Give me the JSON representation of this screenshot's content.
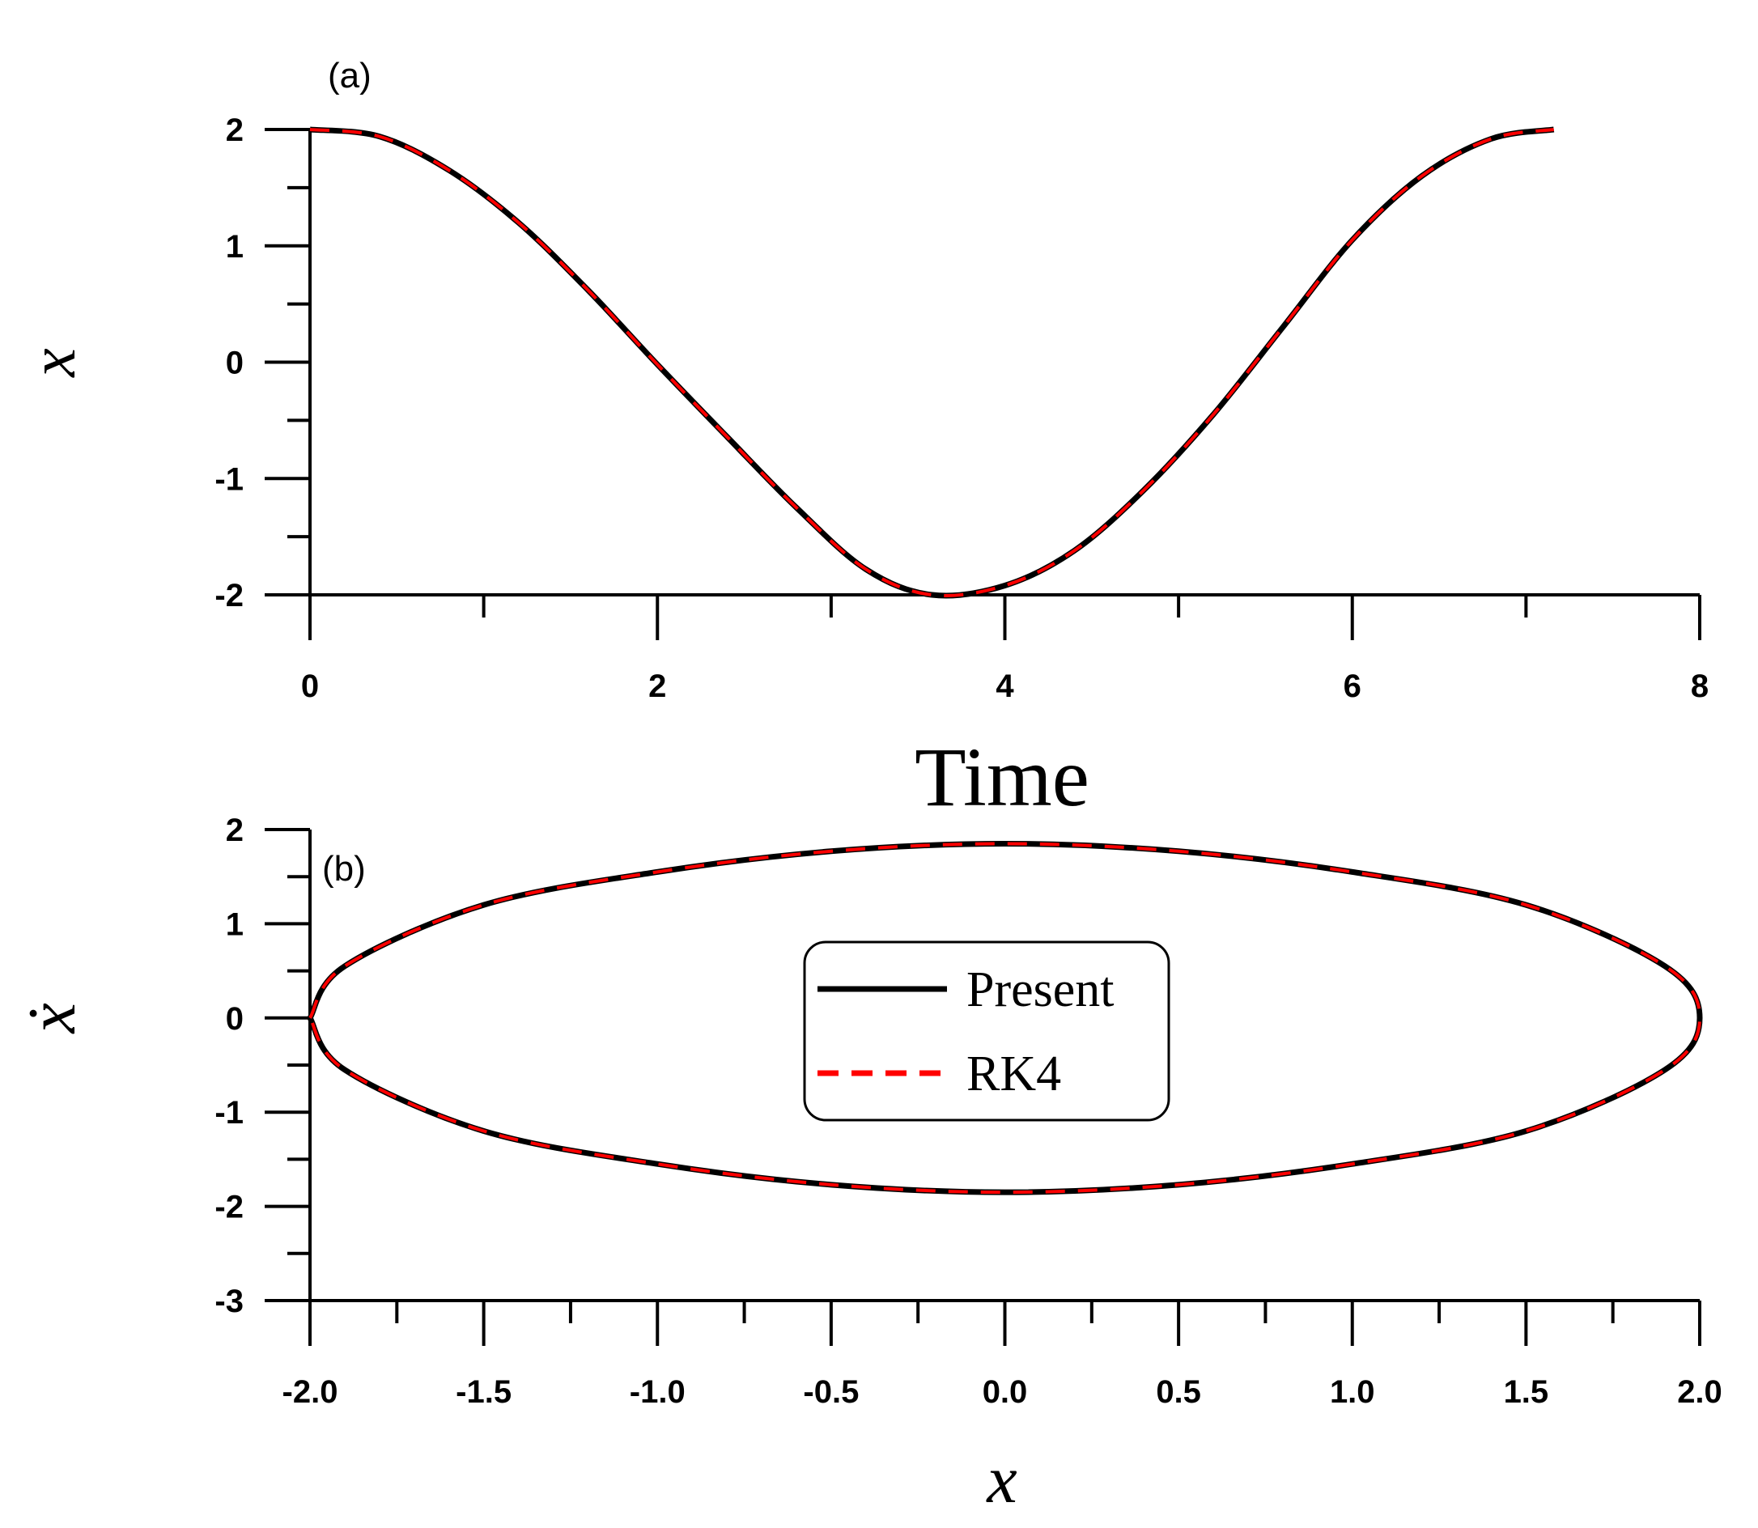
{
  "chart_data": [
    {
      "panel": "(a)",
      "type": "line",
      "xlabel": "Time",
      "ylabel": "x",
      "xlim": [
        0,
        8
      ],
      "ylim": [
        -2,
        2
      ],
      "xticks": [
        "0",
        "2",
        "4",
        "6",
        "8"
      ],
      "yticks": [
        "2",
        "1",
        "0",
        "-1",
        "-2"
      ],
      "series": [
        {
          "name": "Present",
          "color": "#000000",
          "style": "solid",
          "x": [
            0,
            0.4,
            0.8,
            1.2,
            1.6,
            2.0,
            2.4,
            2.8,
            3.2,
            3.58,
            4.0,
            4.4,
            4.8,
            5.2,
            5.6,
            6.0,
            6.4,
            6.8,
            7.16
          ],
          "y": [
            2.0,
            1.94,
            1.65,
            1.2,
            0.62,
            -0.02,
            -0.64,
            -1.25,
            -1.78,
            -2.0,
            -1.92,
            -1.62,
            -1.1,
            -0.45,
            0.3,
            1.05,
            1.6,
            1.92,
            2.0
          ]
        },
        {
          "name": "RK4",
          "color": "#ff0000",
          "style": "dashed",
          "x": [
            0,
            0.4,
            0.8,
            1.2,
            1.6,
            2.0,
            2.4,
            2.8,
            3.2,
            3.58,
            4.0,
            4.4,
            4.8,
            5.2,
            5.6,
            6.0,
            6.4,
            6.8,
            7.16
          ],
          "y": [
            2.0,
            1.94,
            1.65,
            1.2,
            0.62,
            -0.02,
            -0.64,
            -1.25,
            -1.78,
            -2.0,
            -1.92,
            -1.62,
            -1.1,
            -0.45,
            0.3,
            1.05,
            1.6,
            1.92,
            2.0
          ]
        }
      ]
    },
    {
      "panel": "(b)",
      "type": "line",
      "xlabel": "x",
      "ylabel": "ẋ",
      "xlim": [
        -2.0,
        2.0
      ],
      "ylim": [
        -3,
        2
      ],
      "xticks": [
        "-2.0",
        "-1.5",
        "-1.0",
        "-0.5",
        "0.0",
        "0.5",
        "1.0",
        "1.5",
        "2.0"
      ],
      "yticks": [
        "2",
        "1",
        "0",
        "-1",
        "-2",
        "-3"
      ],
      "legend": {
        "position": "center",
        "entries": [
          "Present",
          "RK4"
        ]
      },
      "series": [
        {
          "name": "Present",
          "color": "#000000",
          "style": "solid",
          "x": [
            -2.0,
            -1.9,
            -1.5,
            -1.0,
            -0.5,
            0.0,
            0.5,
            1.0,
            1.5,
            1.9,
            2.0,
            1.9,
            1.5,
            1.0,
            0.5,
            0.0,
            -0.5,
            -1.0,
            -1.5,
            -1.9,
            -2.0
          ],
          "y": [
            0.0,
            0.55,
            1.2,
            1.55,
            1.77,
            1.85,
            1.77,
            1.55,
            1.2,
            0.55,
            0.0,
            -0.55,
            -1.2,
            -1.55,
            -1.77,
            -1.85,
            -1.77,
            -1.55,
            -1.2,
            -0.55,
            0.0
          ]
        },
        {
          "name": "RK4",
          "color": "#ff0000",
          "style": "dashed",
          "x": [
            -2.0,
            -1.9,
            -1.5,
            -1.0,
            -0.5,
            0.0,
            0.5,
            1.0,
            1.5,
            1.9,
            2.0,
            1.9,
            1.5,
            1.0,
            0.5,
            0.0,
            -0.5,
            -1.0,
            -1.5,
            -1.9,
            -2.0
          ],
          "y": [
            0.0,
            0.55,
            1.2,
            1.55,
            1.77,
            1.85,
            1.77,
            1.55,
            1.2,
            0.55,
            0.0,
            -0.55,
            -1.2,
            -1.55,
            -1.77,
            -1.85,
            -1.77,
            -1.55,
            -1.2,
            -0.55,
            0.0
          ]
        }
      ]
    }
  ]
}
